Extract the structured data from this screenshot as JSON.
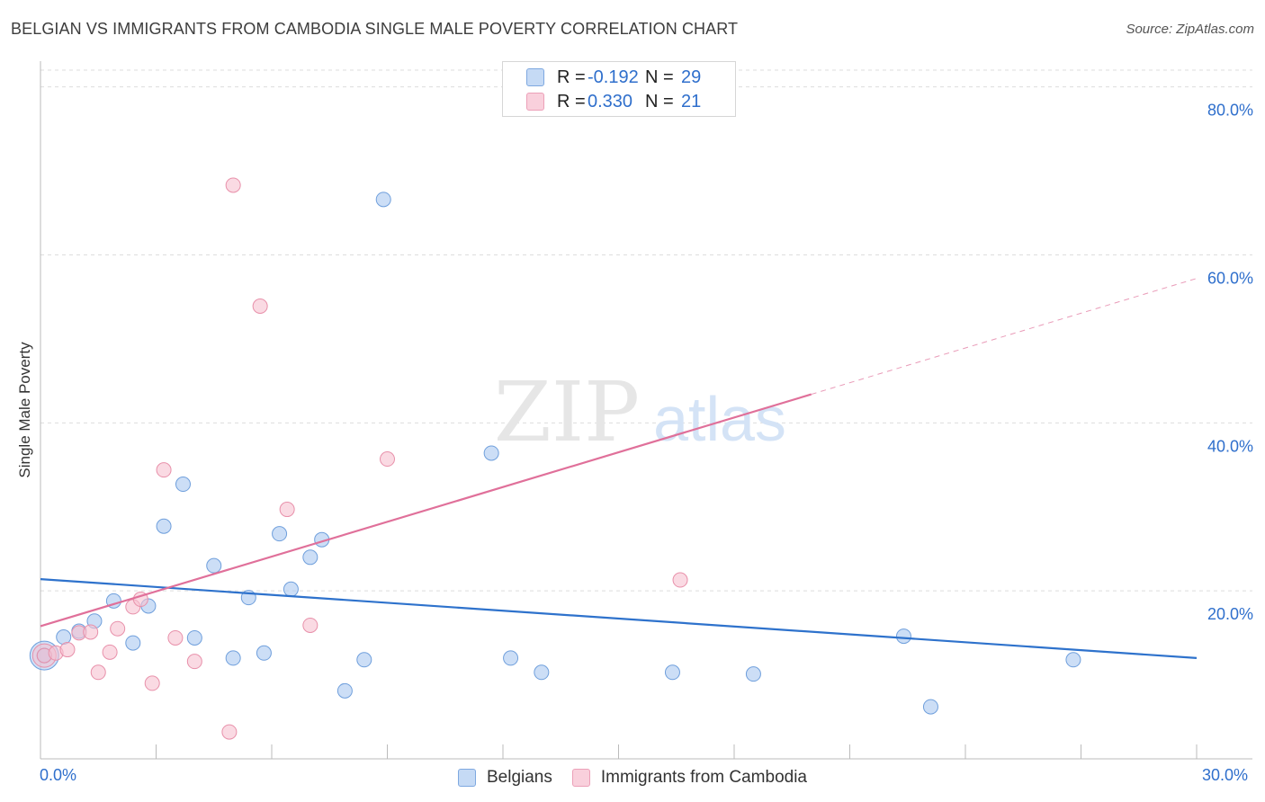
{
  "header": {
    "title": "BELGIAN VS IMMIGRANTS FROM CAMBODIA SINGLE MALE POVERTY CORRELATION CHART",
    "source": "Source: ZipAtlas.com"
  },
  "watermark": {
    "zip": "ZIP",
    "atlas": "atlas"
  },
  "colors": {
    "belgians_fill": "#aac8f0",
    "belgians_stroke": "#6f9fdc",
    "belgians_line": "#2e72cc",
    "cambodia_fill": "#f6c1d0",
    "cambodia_stroke": "#e890aa",
    "cambodia_line": "#e0709a",
    "axis_label": "#2f6fcc",
    "grid": "#dddddd"
  },
  "legend": {
    "rows": [
      {
        "r_label": "R =",
        "r_value": "-0.192",
        "n_label": "N =",
        "n_value": "29"
      },
      {
        "r_label": "R =",
        "r_value": "0.330",
        "n_label": "N =",
        "n_value": "21"
      }
    ]
  },
  "bottom_legend": {
    "series1": "Belgians",
    "series2": "Immigrants from Cambodia"
  },
  "chart_data": {
    "type": "scatter",
    "title": "BELGIAN VS IMMIGRANTS FROM CAMBODIA SINGLE MALE POVERTY CORRELATION CHART",
    "xlabel": "",
    "ylabel": "Single Male Poverty",
    "xlim": [
      0,
      30
    ],
    "ylim": [
      0,
      82
    ],
    "x_tick_labels": [
      "0.0%",
      "30.0%"
    ],
    "y_ticks": [
      20,
      40,
      60,
      80
    ],
    "y_tick_labels": [
      "20.0%",
      "40.0%",
      "60.0%",
      "80.0%"
    ],
    "grid": true,
    "series": [
      {
        "name": "Belgians",
        "r": -0.192,
        "n": 29,
        "points": [
          [
            0.1,
            12.3
          ],
          [
            0.6,
            14.5
          ],
          [
            1.0,
            15.2
          ],
          [
            1.4,
            16.4
          ],
          [
            1.9,
            18.8
          ],
          [
            2.4,
            13.8
          ],
          [
            2.8,
            18.2
          ],
          [
            3.2,
            27.7
          ],
          [
            3.7,
            32.7
          ],
          [
            4.0,
            14.4
          ],
          [
            4.5,
            23.0
          ],
          [
            5.0,
            12.0
          ],
          [
            5.4,
            19.2
          ],
          [
            5.8,
            12.6
          ],
          [
            6.2,
            26.8
          ],
          [
            6.5,
            20.2
          ],
          [
            7.0,
            24.0
          ],
          [
            7.3,
            26.1
          ],
          [
            7.9,
            8.1
          ],
          [
            8.4,
            11.8
          ],
          [
            8.9,
            66.6
          ],
          [
            11.7,
            36.4
          ],
          [
            12.2,
            12.0
          ],
          [
            13.0,
            10.3
          ],
          [
            16.4,
            10.3
          ],
          [
            18.5,
            10.1
          ],
          [
            22.4,
            14.6
          ],
          [
            23.1,
            6.2
          ],
          [
            26.8,
            11.8
          ]
        ],
        "trend": {
          "x": [
            0,
            30
          ],
          "y": [
            21.4,
            12.0
          ],
          "extrapolated": false
        }
      },
      {
        "name": "Immigrants from Cambodia",
        "r": 0.33,
        "n": 21,
        "points": [
          [
            0.1,
            12.3
          ],
          [
            0.4,
            12.6
          ],
          [
            0.7,
            13.0
          ],
          [
            1.0,
            15.0
          ],
          [
            1.3,
            15.1
          ],
          [
            1.5,
            10.3
          ],
          [
            1.8,
            12.7
          ],
          [
            2.0,
            15.5
          ],
          [
            2.4,
            18.1
          ],
          [
            2.6,
            19.0
          ],
          [
            2.9,
            9.0
          ],
          [
            3.2,
            34.4
          ],
          [
            3.5,
            14.4
          ],
          [
            4.0,
            11.6
          ],
          [
            4.9,
            3.2
          ],
          [
            5.0,
            68.3
          ],
          [
            5.7,
            53.9
          ],
          [
            6.4,
            29.7
          ],
          [
            7.0,
            15.9
          ],
          [
            9.0,
            35.7
          ],
          [
            16.6,
            21.3
          ]
        ],
        "trend": {
          "x": [
            0,
            20
          ],
          "y": [
            15.8,
            43.4
          ],
          "extrapolated_to": [
            30,
            57.2
          ]
        }
      }
    ]
  }
}
